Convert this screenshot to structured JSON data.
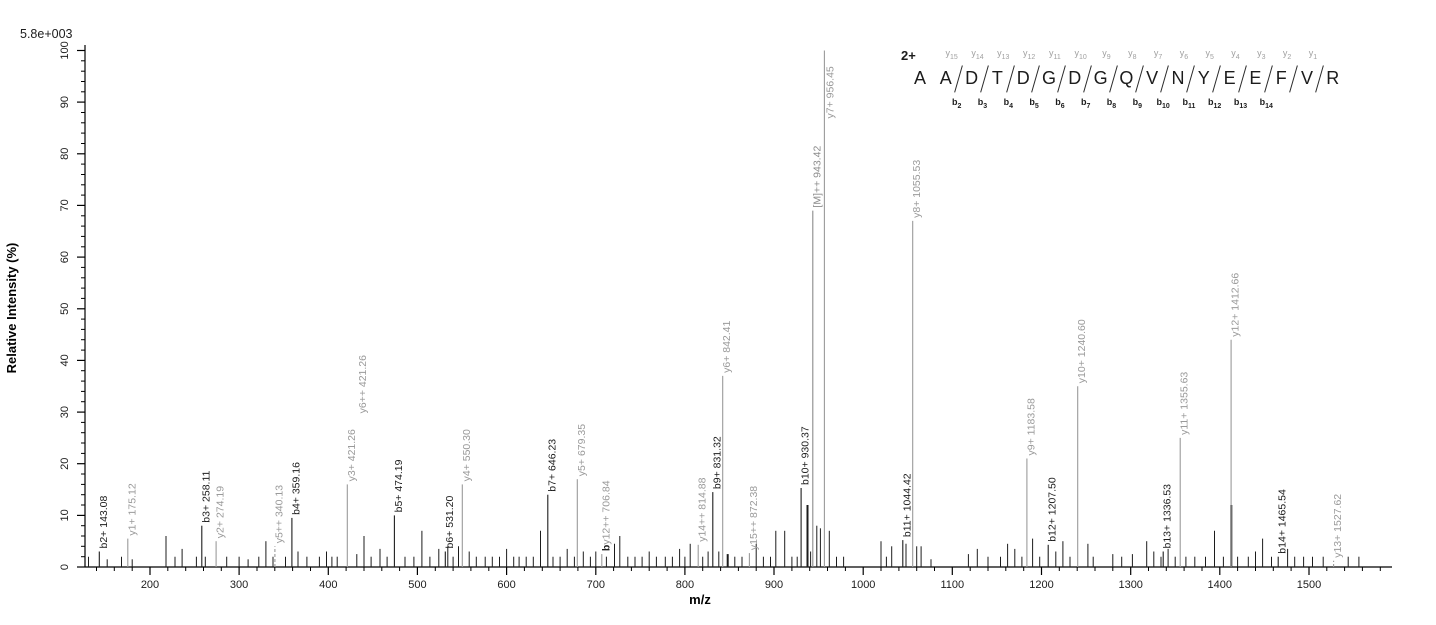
{
  "chart_data": {
    "type": "bar",
    "subtype": "mass-spectrum",
    "title": "",
    "xlabel": "m/z",
    "ylabel": "Relative  Intensity (%)",
    "intensity_scale_label": "5.8e+003",
    "xlim": [
      120,
      1590
    ],
    "ylim": [
      0,
      100
    ],
    "x_major_ticks": [
      200,
      300,
      400,
      500,
      600,
      700,
      800,
      900,
      1000,
      1100,
      1200,
      1300,
      1400,
      1500
    ],
    "x_minor_step": 20,
    "y_major_ticks": [
      0,
      10,
      20,
      30,
      40,
      50,
      60,
      70,
      80,
      90,
      100
    ],
    "y_minor_step": 2,
    "grid": false,
    "legend": "none",
    "colors": {
      "b_series": "#1c1c1c",
      "y_series": "#9a9a9a",
      "precursor": "#8c8c8c",
      "minor": "#1c1c1c",
      "axis": "#000000"
    },
    "labeled_peaks": [
      {
        "label": "b2+ 143.08",
        "mz": 143.08,
        "intensity": 3,
        "series": "b"
      },
      {
        "label": "y1+ 175.12",
        "mz": 175.12,
        "intensity": 5.5,
        "series": "y"
      },
      {
        "label": "b3+ 258.11",
        "mz": 258.11,
        "intensity": 8,
        "series": "b"
      },
      {
        "label": "y2+ 274.19",
        "mz": 274.19,
        "intensity": 5,
        "series": "y"
      },
      {
        "label": "y5++ 340.13",
        "mz": 340.13,
        "intensity": 4,
        "series": "y",
        "dashed": true
      },
      {
        "label": "b4+ 359.16",
        "mz": 359.16,
        "intensity": 9.5,
        "series": "b"
      },
      {
        "label": "y3+ 421.26",
        "mz": 421.26,
        "intensity": 16,
        "series": "y"
      },
      {
        "label": "y6++ 421.26",
        "mz": 421.26,
        "intensity": 16,
        "series": "y",
        "no_stem": true,
        "label_dx": 11,
        "label_raise": 68
      },
      {
        "label": "b5+ 474.19",
        "mz": 474.19,
        "intensity": 10,
        "series": "b"
      },
      {
        "label": "b6+ 531.20",
        "mz": 531.2,
        "intensity": 3,
        "series": "b"
      },
      {
        "label": "y4+ 550.30",
        "mz": 550.3,
        "intensity": 16,
        "series": "y"
      },
      {
        "label": "b7+ 646.23",
        "mz": 646.23,
        "intensity": 14,
        "series": "b"
      },
      {
        "label": "y5+ 679.35",
        "mz": 679.35,
        "intensity": 17,
        "series": "y"
      },
      {
        "label": "y12++ 706.84",
        "mz": 706.84,
        "intensity": 2.5,
        "series": "y",
        "prefix": "b"
      },
      {
        "label": "y14++ 814.88",
        "mz": 814.88,
        "intensity": 4.3,
        "series": "y"
      },
      {
        "label": "b9+ 831.32",
        "mz": 831.32,
        "intensity": 14.5,
        "series": "b"
      },
      {
        "label": "y6+ 842.41",
        "mz": 842.41,
        "intensity": 37,
        "series": "y"
      },
      {
        "label": "y15++ 872.38",
        "mz": 872.38,
        "intensity": 2.7,
        "series": "y"
      },
      {
        "label": "b10+ 930.37",
        "mz": 930.37,
        "intensity": 15.3,
        "series": "b"
      },
      {
        "label": "[M]++ 943.42",
        "mz": 943.42,
        "intensity": 69,
        "series": "M"
      },
      {
        "label": "y7+ 956.45",
        "mz": 956.45,
        "intensity": 100,
        "series": "y",
        "label_inside": true
      },
      {
        "label": "b11+ 1044.42",
        "mz": 1044.42,
        "intensity": 5.2,
        "series": "b"
      },
      {
        "label": "y8+ 1055.53",
        "mz": 1055.53,
        "intensity": 67,
        "series": "y"
      },
      {
        "label": "y9+ 1183.58",
        "mz": 1183.58,
        "intensity": 21,
        "series": "y"
      },
      {
        "label": "b12+ 1207.50",
        "mz": 1207.5,
        "intensity": 4.3,
        "series": "b"
      },
      {
        "label": "y10+ 1240.60",
        "mz": 1240.6,
        "intensity": 35,
        "series": "y"
      },
      {
        "label": "b13+ 1336.53",
        "mz": 1336.53,
        "intensity": 3,
        "series": "b"
      },
      {
        "label": "y11+ 1355.63",
        "mz": 1355.63,
        "intensity": 25,
        "series": "y"
      },
      {
        "label": "y12+ 1412.66",
        "mz": 1412.66,
        "intensity": 44,
        "series": "y"
      },
      {
        "label": "b14+ 1465.54",
        "mz": 1465.54,
        "intensity": 2,
        "series": "b"
      },
      {
        "label": "y13+ 1527.62",
        "mz": 1527.62,
        "intensity": 1.2,
        "series": "y",
        "dashed": true
      }
    ],
    "minor_peaks": [
      [
        131,
        2
      ],
      [
        152,
        1.5
      ],
      [
        168,
        2
      ],
      [
        180,
        1.5
      ],
      [
        218,
        6
      ],
      [
        228,
        2
      ],
      [
        236,
        3.5
      ],
      [
        252,
        2
      ],
      [
        262,
        2
      ],
      [
        286,
        2
      ],
      [
        300,
        2
      ],
      [
        310,
        1.5
      ],
      [
        322,
        2
      ],
      [
        330,
        5
      ],
      [
        338,
        2
      ],
      [
        352,
        2
      ],
      [
        366,
        3
      ],
      [
        376,
        2
      ],
      [
        390,
        2
      ],
      [
        398,
        3
      ],
      [
        404,
        2
      ],
      [
        410,
        2
      ],
      [
        432,
        2.5
      ],
      [
        440,
        6
      ],
      [
        448,
        2
      ],
      [
        458,
        3.5
      ],
      [
        466,
        2
      ],
      [
        486,
        2
      ],
      [
        496,
        2
      ],
      [
        505,
        7
      ],
      [
        514,
        2
      ],
      [
        524,
        3.5
      ],
      [
        534,
        4
      ],
      [
        540,
        2
      ],
      [
        546,
        4
      ],
      [
        558,
        3
      ],
      [
        566,
        2
      ],
      [
        576,
        2
      ],
      [
        584,
        2
      ],
      [
        592,
        2
      ],
      [
        600,
        3.5
      ],
      [
        608,
        2
      ],
      [
        614,
        2
      ],
      [
        622,
        2
      ],
      [
        630,
        2
      ],
      [
        638,
        7
      ],
      [
        652,
        2
      ],
      [
        660,
        2
      ],
      [
        668,
        3.5
      ],
      [
        676,
        2
      ],
      [
        686,
        3
      ],
      [
        694,
        2
      ],
      [
        700,
        3
      ],
      [
        712,
        2
      ],
      [
        721,
        4.5
      ],
      [
        727,
        6
      ],
      [
        736,
        2
      ],
      [
        744,
        2
      ],
      [
        752,
        2
      ],
      [
        760,
        3
      ],
      [
        768,
        2
      ],
      [
        778,
        2
      ],
      [
        786,
        2
      ],
      [
        794,
        3.5
      ],
      [
        800,
        2
      ],
      [
        806,
        4.5
      ],
      [
        820,
        2
      ],
      [
        826,
        3
      ],
      [
        838,
        3
      ],
      [
        848,
        2.5,
        2
      ],
      [
        856,
        2
      ],
      [
        864,
        2
      ],
      [
        880,
        4.5
      ],
      [
        888,
        2
      ],
      [
        896,
        2
      ],
      [
        902,
        7
      ],
      [
        912,
        7
      ],
      [
        920,
        2
      ],
      [
        926,
        2
      ],
      [
        937.5,
        12,
        2
      ],
      [
        941,
        3
      ],
      [
        948,
        8
      ],
      [
        952,
        7.5
      ],
      [
        962,
        7
      ],
      [
        970,
        2
      ],
      [
        978,
        2
      ],
      [
        1020,
        5
      ],
      [
        1026,
        2
      ],
      [
        1032,
        4
      ],
      [
        1048,
        4.5
      ],
      [
        1060,
        4
      ],
      [
        1065,
        4
      ],
      [
        1076,
        1.5
      ],
      [
        1118,
        2.5
      ],
      [
        1128,
        3.5
      ],
      [
        1140,
        2
      ],
      [
        1154,
        2
      ],
      [
        1162,
        4.5
      ],
      [
        1170,
        3.5
      ],
      [
        1178,
        2
      ],
      [
        1190,
        5.5
      ],
      [
        1198,
        2
      ],
      [
        1216,
        3
      ],
      [
        1224,
        5
      ],
      [
        1232,
        2
      ],
      [
        1252,
        4.5
      ],
      [
        1258,
        2
      ],
      [
        1280,
        2.5
      ],
      [
        1290,
        2
      ],
      [
        1302,
        2.5
      ],
      [
        1318,
        5
      ],
      [
        1326,
        3
      ],
      [
        1334,
        2
      ],
      [
        1342,
        3.5
      ],
      [
        1350,
        2
      ],
      [
        1362,
        2
      ],
      [
        1372,
        2
      ],
      [
        1384,
        2
      ],
      [
        1394,
        7
      ],
      [
        1404,
        2
      ],
      [
        1412.9,
        12,
        2
      ],
      [
        1420,
        2
      ],
      [
        1432,
        2
      ],
      [
        1440,
        3
      ],
      [
        1448,
        5.5
      ],
      [
        1458,
        2
      ],
      [
        1476,
        3.5
      ],
      [
        1484,
        2
      ],
      [
        1494,
        2
      ],
      [
        1504,
        2
      ],
      [
        1516,
        2
      ],
      [
        1544,
        2
      ],
      [
        1556,
        2
      ]
    ]
  },
  "sequence_annotation": {
    "charge_label": "2+",
    "peptide": "AADTDGDGQVNYEEFVR",
    "residues": [
      "A",
      "A",
      "D",
      "T",
      "D",
      "G",
      "D",
      "G",
      "Q",
      "V",
      "N",
      "Y",
      "E",
      "E",
      "F",
      "V",
      "R"
    ],
    "y_ion_labels": [
      "y15",
      "y14",
      "y13",
      "y12",
      "y11",
      "y10",
      "y9",
      "y8",
      "y7",
      "y6",
      "y5",
      "y4",
      "y3",
      "y2",
      "y1"
    ],
    "b_ion_labels": [
      "b2",
      "b3",
      "b4",
      "b5",
      "b6",
      "b7",
      "b8",
      "b9",
      "b10",
      "b11",
      "b12",
      "b13",
      "b14"
    ]
  }
}
